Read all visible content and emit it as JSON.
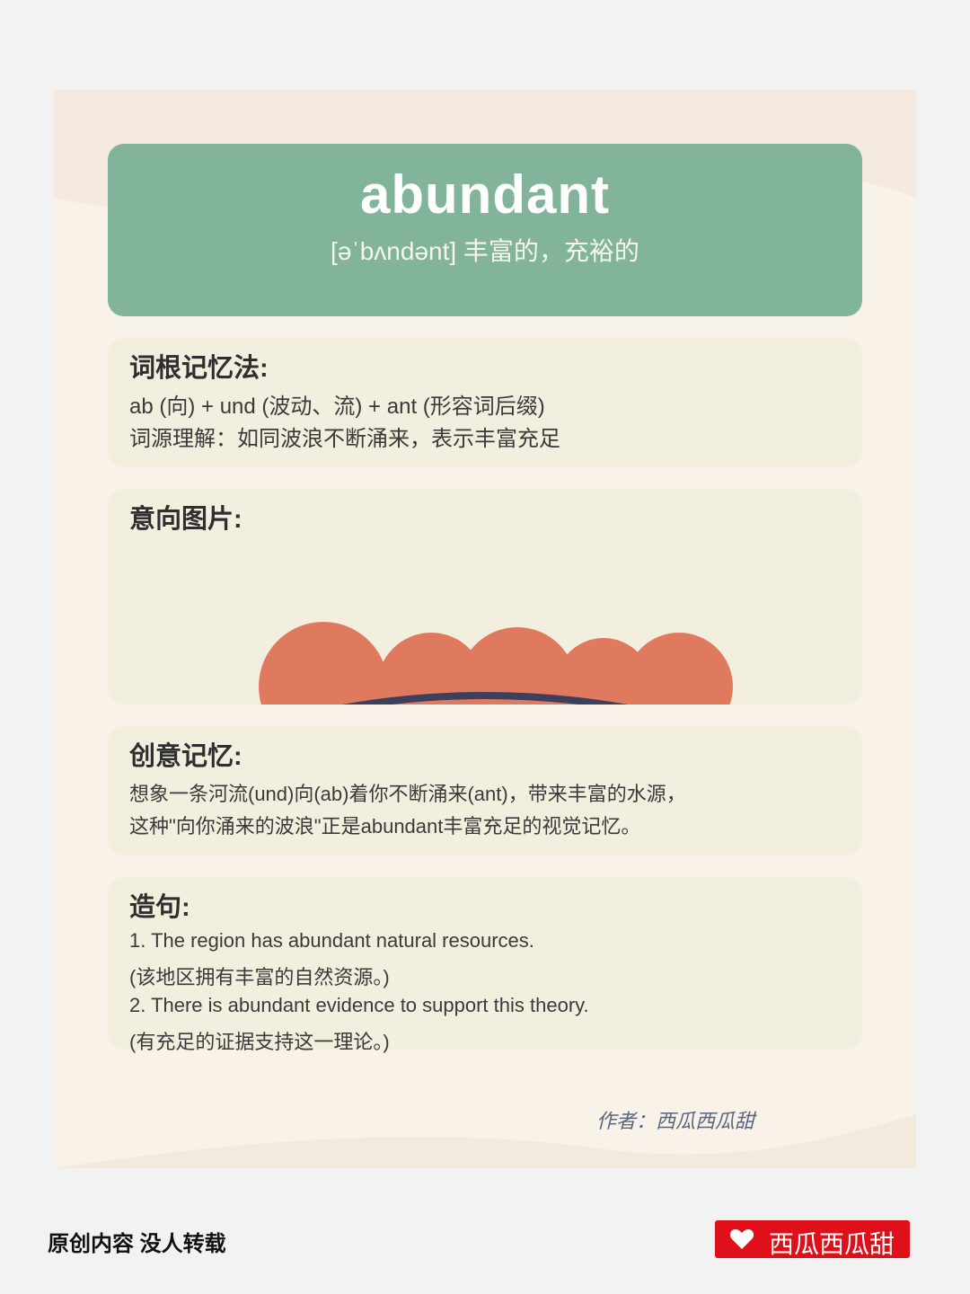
{
  "header": {
    "word": "abundant",
    "phonetic": "[əˈbʌndənt] 丰富的，充裕的"
  },
  "root_memory": {
    "title": "词根记忆法:",
    "line1": "ab (向) + und (波动、流) + ant (形容词后缀)",
    "line2": "词源理解：如同波浪不断涌来，表示丰富充足"
  },
  "image_section": {
    "title": "意向图片:"
  },
  "creative_memory": {
    "title": "创意记忆:",
    "line1": "想象一条河流(und)向(ab)着你不断涌来(ant)，带来丰富的水源，",
    "line2": "这种\"向你涌来的波浪\"正是abundant丰富充足的视觉记忆。"
  },
  "sentences": {
    "title": "造句:",
    "items": [
      "1. The region has abundant natural resources.",
      "(该地区拥有丰富的自然资源。)",
      "2. There is abundant evidence to support this theory.",
      "(有充足的证据支持这一理论。)"
    ]
  },
  "author": "作者：西瓜西瓜甜",
  "footer": {
    "left_text": "原创内容 没人转载",
    "brand": "西瓜西瓜甜",
    "brand_icon": "heart-icon"
  },
  "colors": {
    "header_bg": "#82b49b",
    "section_bg": "#f3efdf",
    "card_bg": "#f8f2e9",
    "circle": "#e07a5f",
    "wave": "#3d405b",
    "brand_red": "#e0101a"
  }
}
